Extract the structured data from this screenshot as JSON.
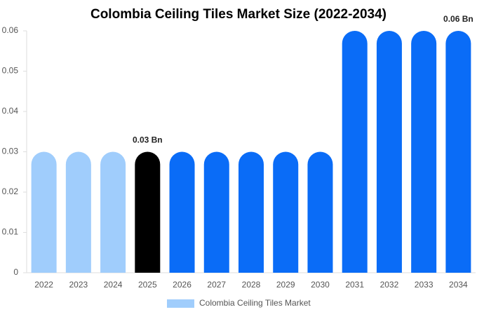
{
  "chart_data": {
    "type": "bar",
    "title": "Colombia Ceiling Tiles Market Size (2022-2034)",
    "categories": [
      "2022",
      "2023",
      "2024",
      "2025",
      "2026",
      "2027",
      "2028",
      "2029",
      "2030",
      "2031",
      "2032",
      "2033",
      "2034"
    ],
    "series": [
      {
        "name": "Colombia Ceiling Tiles Market",
        "color": "#a0cdfc",
        "values": [
          0.03,
          0.03,
          0.03,
          0.03,
          0.03,
          0.03,
          0.03,
          0.03,
          0.03,
          0.06,
          0.06,
          0.06,
          0.06
        ],
        "value_labels": [
          null,
          null,
          null,
          "0.03 Bn",
          null,
          null,
          null,
          null,
          null,
          null,
          null,
          null,
          "0.06 Bn"
        ],
        "bar_colors": [
          "#a0cdfc",
          "#a0cdfc",
          "#a0cdfc",
          "#000000",
          "#0a6cf7",
          "#0a6cf7",
          "#0a6cf7",
          "#0a6cf7",
          "#0a6cf7",
          "#0a6cf7",
          "#0a6cf7",
          "#0a6cf7",
          "#0a6cf7"
        ]
      }
    ],
    "ylim": [
      0,
      0.06
    ],
    "yticks": [
      0,
      0.01,
      0.02,
      0.03,
      0.04,
      0.05,
      0.06
    ],
    "grid": false,
    "legend": "bottom"
  }
}
